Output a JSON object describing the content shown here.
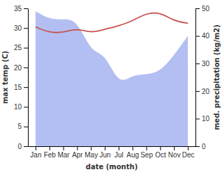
{
  "chart_data": {
    "type": "line",
    "x_label": "date (month)",
    "y_label": "max temp (C)",
    "y2_label": "med. precipitation (kg/m2)",
    "categories": [
      "Jan",
      "Feb",
      "Mar",
      "Apr",
      "May",
      "Jun",
      "Jul",
      "Aug",
      "Sep",
      "Oct",
      "Nov",
      "Dec"
    ],
    "ylim": [
      0,
      35
    ],
    "yticks": [
      0,
      5,
      10,
      15,
      20,
      25,
      30,
      35
    ],
    "y2lim": [
      0,
      50
    ],
    "y2ticks": [
      0,
      10,
      20,
      30,
      40,
      50
    ],
    "series": [
      {
        "name": "max temp",
        "type": "line",
        "color": "#c8524f",
        "values": [
          30.3,
          28.8,
          28.8,
          30.0,
          28.7,
          29.7,
          30.5,
          31.8,
          33.8,
          34.0,
          31.8,
          31.2
        ]
      },
      {
        "name": "med. precipitation",
        "type": "area",
        "axis": "y2",
        "color": "#b3bff2",
        "values": [
          49,
          46,
          46,
          46,
          34,
          34,
          22,
          26,
          26,
          27,
          33,
          40
        ]
      }
    ]
  }
}
